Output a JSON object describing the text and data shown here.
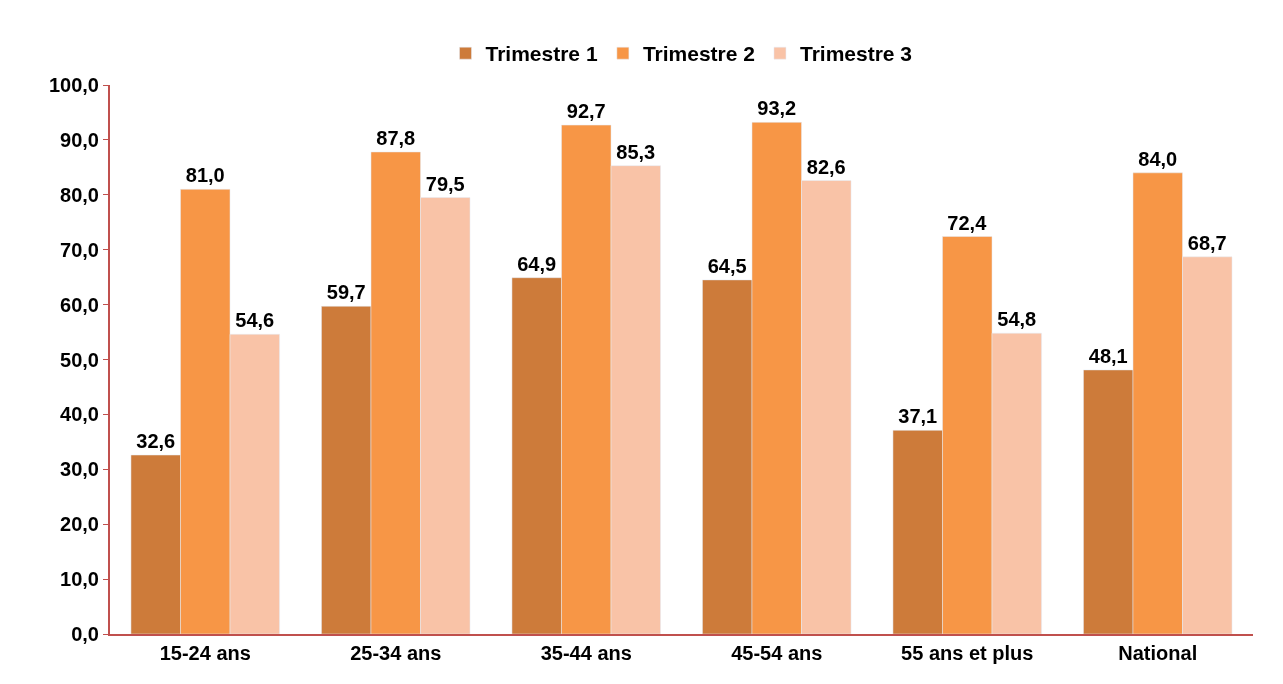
{
  "chart_data": {
    "type": "bar",
    "categories": [
      "15-24 ans",
      "25-34 ans",
      "35-44 ans",
      "45-54 ans",
      "55 ans et plus",
      "National"
    ],
    "series": [
      {
        "name": "Trimestre 1",
        "color": "#cd7b3a",
        "values": [
          32.6,
          59.7,
          64.9,
          64.5,
          37.1,
          48.1
        ],
        "value_labels": [
          "32,6",
          "59,7",
          "64,9",
          "64,5",
          "37,1",
          "48,1"
        ]
      },
      {
        "name": "Trimestre 2",
        "color": "#f79646",
        "values": [
          81.0,
          87.8,
          92.7,
          93.2,
          72.4,
          84.0
        ],
        "value_labels": [
          "81,0",
          "87,8",
          "92,7",
          "93,2",
          "72,4",
          "84,0"
        ]
      },
      {
        "name": "Trimestre 3",
        "color": "#f9c3a7",
        "values": [
          54.6,
          79.5,
          85.3,
          82.6,
          54.8,
          68.7
        ],
        "value_labels": [
          "54,6",
          "79,5",
          "85,3",
          "82,6",
          "54,8",
          "68,7"
        ]
      }
    ],
    "ylim": [
      0,
      100
    ],
    "yticks": [
      {
        "value": 0,
        "label": "0,0"
      },
      {
        "value": 10,
        "label": "10,0"
      },
      {
        "value": 20,
        "label": "20,0"
      },
      {
        "value": 30,
        "label": "30,0"
      },
      {
        "value": 40,
        "label": "40,0"
      },
      {
        "value": 50,
        "label": "50,0"
      },
      {
        "value": 60,
        "label": "60,0"
      },
      {
        "value": 70,
        "label": "70,0"
      },
      {
        "value": 80,
        "label": "80,0"
      },
      {
        "value": 90,
        "label": "90,0"
      },
      {
        "value": 100,
        "label": "100,0"
      }
    ],
    "legend": "top"
  }
}
